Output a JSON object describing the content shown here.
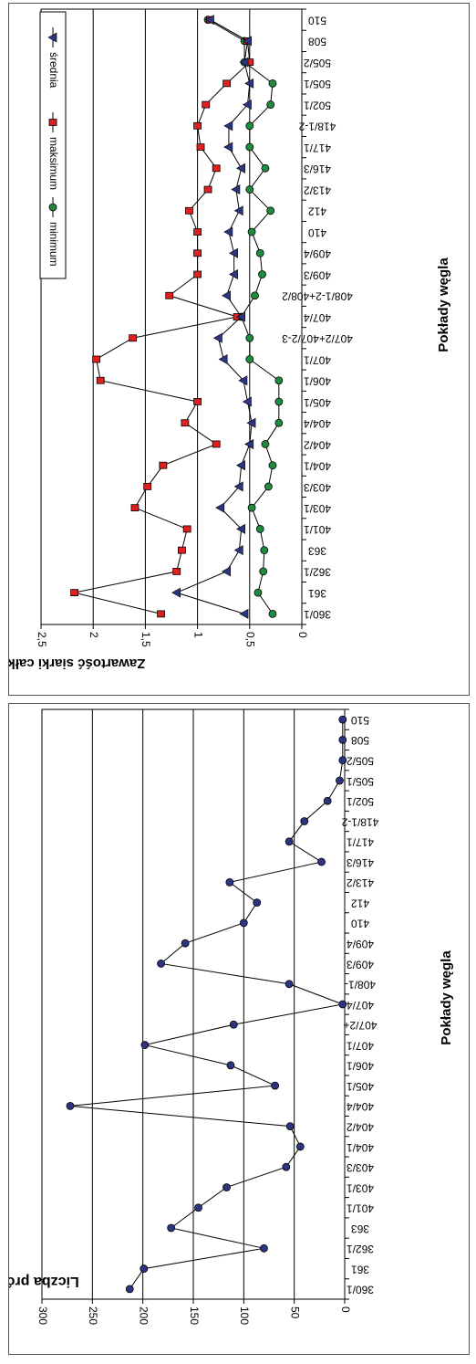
{
  "chart_data": [
    {
      "type": "line",
      "orientation": "rotated-90-clockwise",
      "ylabel": "Zawartość siarki całkowitej Sᵈₜ, [%]",
      "ylabel_parts": {
        "main": "Zawartość siarki całkowitej S",
        "sup": "d",
        "sub": "t",
        "unit": ", [%]"
      },
      "xlabel": "Pokłady węgla",
      "ylim": [
        0,
        2.5
      ],
      "yticks": [
        "0",
        "0,5",
        "1",
        "1,5",
        "2",
        "2,5"
      ],
      "grid": true,
      "legend_position": "top-right",
      "categories": [
        "360/1",
        "361",
        "362/1",
        "363",
        "401/1",
        "403/1",
        "403/3",
        "404/1",
        "404/2",
        "404/4",
        "405/1",
        "406/1",
        "407/1",
        "407/2+407/2-3",
        "407/4",
        "408/1-2+408/2",
        "409/3",
        "409/4",
        "410",
        "412",
        "413/2",
        "416/3",
        "417/1",
        "418/1-2",
        "502/1",
        "505/1",
        "505/2",
        "508",
        "510"
      ],
      "series": [
        {
          "name": "minimum",
          "color": "#1e8c3c",
          "marker": "circle",
          "values": [
            0.28,
            0.42,
            0.37,
            0.36,
            0.4,
            0.48,
            0.32,
            0.28,
            0.35,
            0.22,
            0.22,
            0.22,
            0.5,
            0.5,
            0.58,
            0.45,
            0.38,
            0.4,
            0.48,
            0.3,
            0.5,
            0.35,
            0.5,
            0.5,
            0.3,
            0.28,
            0.55,
            0.55,
            0.9
          ]
        },
        {
          "name": "maksimum",
          "color": "#e02020",
          "marker": "square",
          "values": [
            1.35,
            2.18,
            1.2,
            1.15,
            1.1,
            1.6,
            1.48,
            1.33,
            0.82,
            1.12,
            1.0,
            1.93,
            1.97,
            1.62,
            0.62,
            1.27,
            1.0,
            1.0,
            1.0,
            1.08,
            0.9,
            0.82,
            0.97,
            1.0,
            0.92,
            0.72,
            0.5,
            0.52,
            0.88
          ]
        },
        {
          "name": "średnia",
          "color": "#2b3580",
          "marker": "triangle",
          "values": [
            0.55,
            1.2,
            0.72,
            0.6,
            0.58,
            0.78,
            0.6,
            0.58,
            0.5,
            0.48,
            0.52,
            0.56,
            0.75,
            0.8,
            0.58,
            0.72,
            0.65,
            0.65,
            0.7,
            0.6,
            0.63,
            0.58,
            0.7,
            0.7,
            0.52,
            0.5,
            0.55,
            0.52,
            0.88
          ]
        }
      ]
    },
    {
      "type": "line",
      "orientation": "rotated-90-clockwise",
      "ylabel": "Liczba próbek",
      "xlabel": "Pokłady węgla",
      "ylim": [
        0,
        300
      ],
      "yticks": [
        "0",
        "50",
        "100",
        "150",
        "200",
        "250",
        "300"
      ],
      "grid": true,
      "categories": [
        "360/1",
        "361",
        "362/1",
        "363",
        "401/1",
        "403/1",
        "403/3",
        "404/1",
        "404/2",
        "404/4",
        "405/1",
        "406/1",
        "407/1",
        "407/2+",
        "407/4",
        "408/1-",
        "409/3",
        "409/4",
        "410",
        "412",
        "413/2",
        "416/3",
        "417/1",
        "418/1-2",
        "502/1",
        "505/1",
        "505/2",
        "508",
        "510"
      ],
      "series": [
        {
          "name": "",
          "color": "#2b3580",
          "marker": "circle",
          "values": [
            213,
            199,
            80,
            172,
            145,
            117,
            58,
            44,
            54,
            272,
            69,
            113,
            198,
            110,
            2,
            55,
            182,
            158,
            100,
            87,
            114,
            23,
            55,
            40,
            17,
            5,
            2,
            2,
            2
          ]
        }
      ]
    }
  ]
}
